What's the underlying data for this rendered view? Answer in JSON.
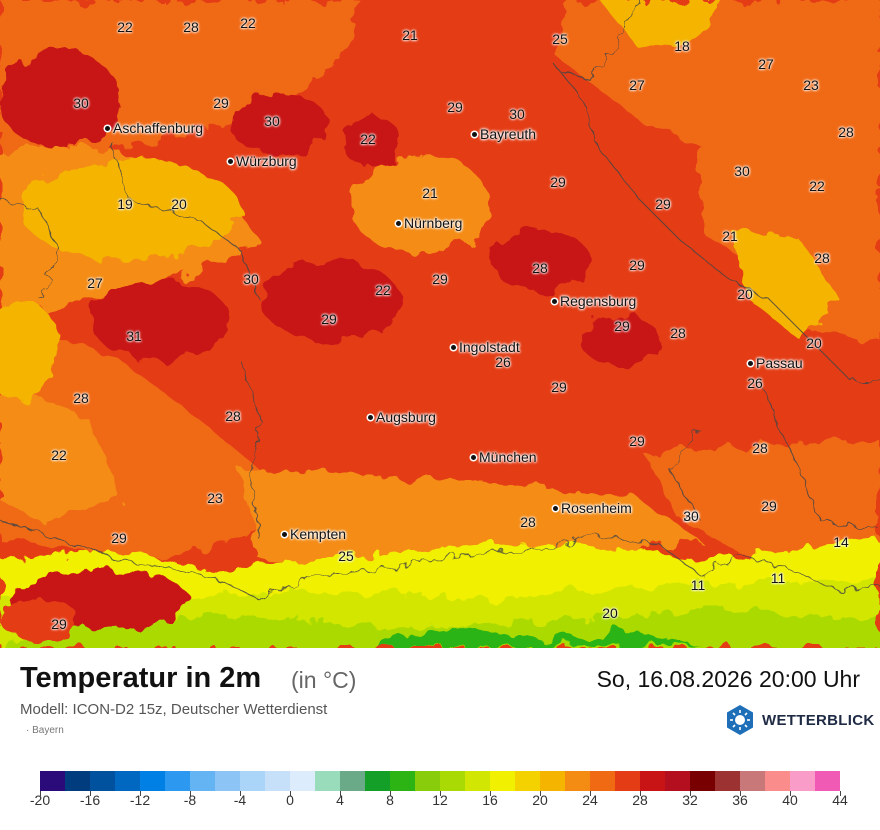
{
  "map": {
    "title": "Temperatur in 2m",
    "unit": "(in °C)",
    "datetime": "So, 16.08.2026 20:00 Uhr",
    "model": "Modell: ICON-D2 15z, Deutscher Wetterdienst",
    "region": "· Bayern",
    "brand": "WETTERBLICK",
    "brand_icon": "sun-snowflake-hexagon-icon",
    "cities": [
      {
        "name": "Aschaffenburg"
      },
      {
        "name": "Würzburg"
      },
      {
        "name": "Bayreuth"
      },
      {
        "name": "Nürnberg"
      },
      {
        "name": "Regensburg"
      },
      {
        "name": "Ingolstadt"
      },
      {
        "name": "Passau"
      },
      {
        "name": "Augsburg"
      },
      {
        "name": "München"
      },
      {
        "name": "Rosenheim"
      },
      {
        "name": "Kempten"
      }
    ],
    "temperatures": [
      "22",
      "28",
      "22",
      "21",
      "25",
      "18",
      "27",
      "30",
      "29",
      "30",
      "29",
      "22",
      "30",
      "23",
      "28",
      "27",
      "29",
      "21",
      "30",
      "29",
      "22",
      "19",
      "20",
      "21",
      "28",
      "28",
      "29",
      "27",
      "30",
      "22",
      "29",
      "29",
      "29",
      "31",
      "29",
      "29",
      "26",
      "28",
      "20",
      "20",
      "28",
      "26",
      "28",
      "28",
      "29",
      "29",
      "22",
      "23",
      "28",
      "30",
      "29",
      "14",
      "25",
      "11",
      "11",
      "20",
      "29"
    ],
    "legend": {
      "colors": [
        "#2b0a7a",
        "#003c7e",
        "#00529e",
        "#0068c0",
        "#0080e4",
        "#2c98f0",
        "#64b4f4",
        "#8cc4f6",
        "#aad4f8",
        "#c6e0fa",
        "#dcecfc",
        "#98dcbc",
        "#6aaa88",
        "#14a028",
        "#2cb414",
        "#88cc0c",
        "#aada04",
        "#d2e604",
        "#f0f000",
        "#f4d200",
        "#f4b400",
        "#f48c14",
        "#f06a14",
        "#e43c14",
        "#c81414",
        "#b40f1e",
        "#780000",
        "#9c3232",
        "#c87878",
        "#fa8c8c",
        "#fa9cc8",
        "#f05ab4"
      ],
      "ticks": [
        "-20",
        "-16",
        "-12",
        "-8",
        "-4",
        "0",
        "4",
        "8",
        "12",
        "16",
        "20",
        "24",
        "28",
        "32",
        "36",
        "40",
        "44"
      ]
    }
  }
}
